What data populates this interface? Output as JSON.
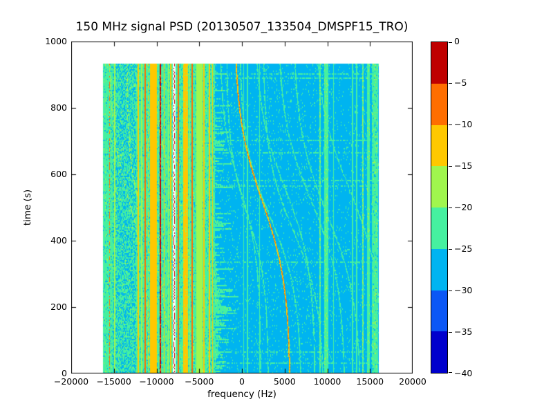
{
  "chart_data": {
    "type": "heatmap",
    "title": "150 MHz signal PSD (20130507_133504_DMSPF15_TRO)",
    "xlabel": "frequency (Hz)",
    "ylabel": "time (s)",
    "xlim": [
      -20000,
      20000
    ],
    "ylim": [
      0,
      1000
    ],
    "xticks": [
      -20000,
      -15000,
      -10000,
      -5000,
      0,
      5000,
      10000,
      15000,
      20000
    ],
    "xtick_labels": [
      "−20000",
      "−15000",
      "−10000",
      "−5000",
      "0",
      "5000",
      "10000",
      "15000",
      "20000"
    ],
    "yticks": [
      0,
      200,
      400,
      600,
      800,
      1000
    ],
    "ytick_labels": [
      "0",
      "200",
      "400",
      "600",
      "800",
      "1000"
    ],
    "data_extent": {
      "freq_hz": [
        -16300,
        16000
      ],
      "time_s": [
        0,
        933
      ]
    },
    "colorbar": {
      "tick_values": [
        0,
        -5,
        -10,
        -15,
        -20,
        -25,
        -30,
        -35,
        -40
      ],
      "tick_labels": [
        "0",
        "−5",
        "−10",
        "−15",
        "−20",
        "−25",
        "−30",
        "−35",
        "−40"
      ],
      "segment_colors": [
        "#bf0000",
        "#ff6e00",
        "#ffc800",
        "#a0f64e",
        "#46f0a0",
        "#00b4f0",
        "#0b57f5",
        "#0000cd"
      ],
      "over_color": "#ffffff"
    },
    "background": {
      "left_level_db": -22.3,
      "right_level_db": -27.6,
      "boundary_hz": -3150
    },
    "carrier": {
      "freq_hz": -7935,
      "white_halfwidth_hz": 150,
      "core_halfwidth_hz": 38,
      "core_level_db": -2
    },
    "stripes": [
      {
        "freq_hz": -15500,
        "width_hz": 60,
        "level_db": -9,
        "dashed": true
      },
      {
        "freq_hz": -14900,
        "width_hz": 50,
        "level_db": -18
      },
      {
        "freq_hz": -12150,
        "width_hz": 70,
        "level_db": -13
      },
      {
        "freq_hz": -11750,
        "width_hz": 55,
        "level_db": -17
      },
      {
        "freq_hz": -11350,
        "width_hz": 55,
        "level_db": -8.5
      },
      {
        "freq_hz": -10950,
        "width_hz": 55,
        "level_db": -13,
        "dashed": true
      },
      {
        "freq_hz": -10350,
        "width_hz": 420,
        "level_db": -13.5,
        "jitter_db": 2
      },
      {
        "freq_hz": -10250,
        "width_hz": 60,
        "level_db": -12
      },
      {
        "freq_hz": -9550,
        "width_hz": 60,
        "level_db": -4
      },
      {
        "freq_hz": -9100,
        "width_hz": 70,
        "level_db": -13
      },
      {
        "freq_hz": -8600,
        "width_hz": 55,
        "level_db": -17
      },
      {
        "freq_hz": -8350,
        "width_hz": 55,
        "level_db": -13
      },
      {
        "freq_hz": -7450,
        "width_hz": 60,
        "level_db": -8.5
      },
      {
        "freq_hz": -6600,
        "width_hz": 260,
        "level_db": -14,
        "jitter_db": 2.5
      },
      {
        "freq_hz": -6100,
        "width_hz": 50,
        "level_db": -17
      },
      {
        "freq_hz": -5830,
        "width_hz": 60,
        "level_db": -7.5
      },
      {
        "freq_hz": -5000,
        "width_hz": 380,
        "level_db": -17.5,
        "jitter_db": 2
      },
      {
        "freq_hz": -4450,
        "width_hz": 60,
        "level_db": -13
      },
      {
        "freq_hz": -3800,
        "width_hz": 60,
        "level_db": -12.5
      },
      {
        "freq_hz": -3430,
        "width_hz": 60,
        "level_db": -13.5
      },
      {
        "freq_hz": 200,
        "width_hz": 55,
        "level_db": -22.5
      },
      {
        "freq_hz": 650,
        "width_hz": 45,
        "level_db": -23
      },
      {
        "freq_hz": 2050,
        "width_hz": 40,
        "level_db": -23.5
      },
      {
        "freq_hz": 9150,
        "width_hz": 90,
        "level_db": -21,
        "jitter_db": 4
      },
      {
        "freq_hz": 9900,
        "width_hz": 240,
        "level_db": -21.5,
        "jitter_db": 4
      },
      {
        "freq_hz": 10700,
        "width_hz": 45,
        "level_db": -23
      },
      {
        "freq_hz": 12950,
        "width_hz": 65,
        "level_db": -22,
        "jitter_db": 3
      },
      {
        "freq_hz": 13450,
        "width_hz": 70,
        "level_db": -22,
        "jitter_db": 3
      },
      {
        "freq_hz": 14150,
        "width_hz": 85,
        "level_db": -20.5,
        "jitter_db": 4
      },
      {
        "freq_hz": 14800,
        "width_hz": 180,
        "level_db": -22,
        "jitter_db": 5
      },
      {
        "freq_hz": 15600,
        "width_hz": 380,
        "level_db": -22.5,
        "jitter_db": 6
      }
    ],
    "doppler_traces": [
      {
        "f_top_hz": -15600,
        "f_bottom_hz": -10800,
        "t_mid_s": 520,
        "tau_s": 230,
        "level_db": -19.5,
        "width_hz": 70,
        "bright": false
      },
      {
        "f_top_hz": -13500,
        "f_bottom_hz": -8600,
        "t_mid_s": 430,
        "tau_s": 200,
        "level_db": -19.5,
        "width_hz": 70,
        "bright": false
      },
      {
        "f_top_hz": -11000,
        "f_bottom_hz": -5600,
        "t_mid_s": 600,
        "tau_s": 240,
        "level_db": -19.5,
        "width_hz": 70,
        "bright": false
      },
      {
        "f_top_hz": -2600,
        "f_bottom_hz": 2200,
        "t_mid_s": 560,
        "tau_s": 210,
        "level_db": -23.5,
        "width_hz": 70,
        "bright": false
      },
      {
        "f_top_hz": -1800,
        "f_bottom_hz": 3100,
        "t_mid_s": 480,
        "tau_s": 200,
        "level_db": -23.5,
        "width_hz": 70,
        "bright": false
      },
      {
        "f_top_hz": -900,
        "f_bottom_hz": 5700,
        "t_mid_s": 520,
        "tau_s": 250,
        "level_db": -13,
        "width_hz": 80,
        "bright": true
      },
      {
        "f_top_hz": -300,
        "f_bottom_hz": 7000,
        "t_mid_s": 470,
        "tau_s": 230,
        "level_db": -23.5,
        "width_hz": 70,
        "bright": false
      },
      {
        "f_top_hz": 1500,
        "f_bottom_hz": 8600,
        "t_mid_s": 560,
        "tau_s": 240,
        "level_db": -23.5,
        "width_hz": 70,
        "bright": false
      },
      {
        "f_top_hz": 2500,
        "f_bottom_hz": 9600,
        "t_mid_s": 430,
        "tau_s": 220,
        "level_db": -23.5,
        "width_hz": 70,
        "bright": false
      },
      {
        "f_top_hz": 4200,
        "f_bottom_hz": 12100,
        "t_mid_s": 520,
        "tau_s": 250,
        "level_db": -23.5,
        "width_hz": 70,
        "bright": false
      },
      {
        "f_top_hz": 6000,
        "f_bottom_hz": 14000,
        "t_mid_s": 480,
        "tau_s": 260,
        "level_db": -23.5,
        "width_hz": 70,
        "bright": false
      },
      {
        "f_top_hz": 8500,
        "f_bottom_hz": 16600,
        "t_mid_s": 560,
        "tau_s": 260,
        "level_db": -23.5,
        "width_hz": 70,
        "bright": false
      }
    ]
  }
}
